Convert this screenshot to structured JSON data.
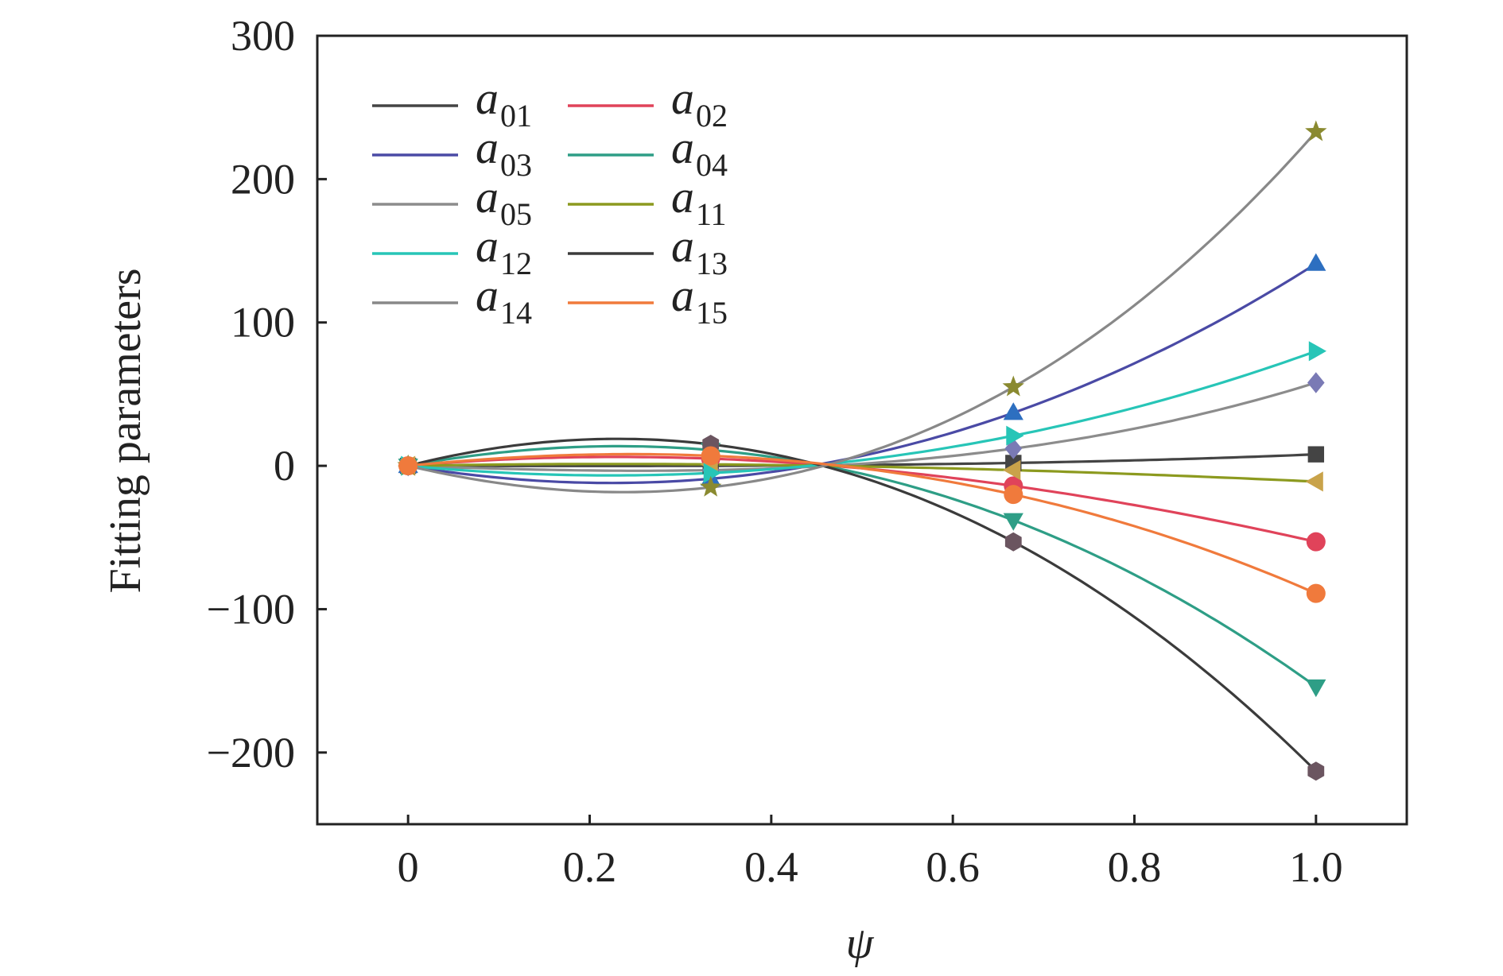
{
  "chart_data": {
    "type": "line",
    "title": "",
    "xlabel": "ψ",
    "ylabel": "Fitting parameters",
    "xlim": [
      -0.1,
      1.1
    ],
    "ylim": [
      -250,
      300
    ],
    "xticks": [
      0,
      0.2,
      0.4,
      0.6,
      0.8,
      1.0
    ],
    "xtick_labels": [
      "0",
      "0.2",
      "0.4",
      "0.6",
      "0.8",
      "1.0"
    ],
    "yticks": [
      -200,
      -100,
      0,
      100,
      200,
      300
    ],
    "ytick_labels": [
      "−200",
      "−100",
      "0",
      "100",
      "200",
      "300"
    ],
    "grid": false,
    "legend_position": "top-left",
    "legend_columns": 2,
    "x": [
      0,
      0.3333,
      0.6667,
      1.0
    ],
    "series": [
      {
        "name": "a01",
        "letter": "a",
        "sub": "01",
        "color": "#444444",
        "marker": "square",
        "values": [
          0,
          0,
          2,
          8
        ]
      },
      {
        "name": "a02",
        "letter": "a",
        "sub": "02",
        "color": "#e0435a",
        "marker": "circle",
        "values": [
          0,
          5,
          -14,
          -53
        ]
      },
      {
        "name": "a03",
        "letter": "a",
        "sub": "03",
        "color": "#4a4aa5",
        "marker": "triangle-up",
        "values": [
          0,
          -9,
          37,
          141
        ]
      },
      {
        "name": "a04",
        "letter": "a",
        "sub": "04",
        "color": "#2e9e86",
        "marker": "triangle-down",
        "values": [
          0,
          11,
          -38,
          -154
        ]
      },
      {
        "name": "a05",
        "letter": "a",
        "sub": "05",
        "color": "#8c8c8c",
        "marker": "diamond",
        "values": [
          0,
          -3,
          12,
          58
        ]
      },
      {
        "name": "a11",
        "letter": "a",
        "sub": "11",
        "color": "#8c9a1f",
        "marker": "triangle-left",
        "values": [
          0,
          1,
          -3,
          -11
        ]
      },
      {
        "name": "a12",
        "letter": "a",
        "sub": "12",
        "color": "#27c5b7",
        "marker": "triangle-right",
        "values": [
          0,
          -5,
          21,
          80
        ]
      },
      {
        "name": "a13",
        "letter": "a",
        "sub": "13",
        "color": "#3b3b3b",
        "marker": "hexagon",
        "values": [
          0,
          15,
          -53,
          -213
        ]
      },
      {
        "name": "a14",
        "letter": "a",
        "sub": "14",
        "color": "#888888",
        "marker": "star",
        "values": [
          0,
          -15,
          55,
          233
        ]
      },
      {
        "name": "a15",
        "letter": "a",
        "sub": "15",
        "color": "#f07a3c",
        "marker": "circle",
        "values": [
          0,
          7,
          -20,
          -89
        ]
      }
    ],
    "marker_colors": {
      "a01": "#444444",
      "a02": "#e0435a",
      "a03": "#2d6fc0",
      "a04": "#2e9e86",
      "a05": "#7a7ab5",
      "a11": "#c9a34a",
      "a12": "#27c5b7",
      "a13": "#6b5560",
      "a14": "#8a8a30",
      "a15": "#f07a3c"
    }
  }
}
